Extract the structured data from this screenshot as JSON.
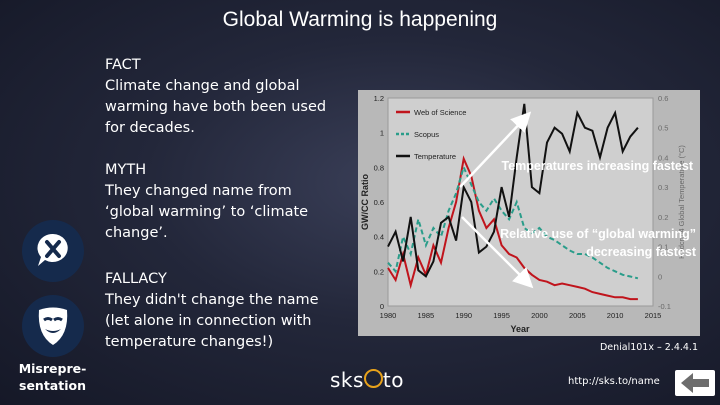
{
  "slide": {
    "title": "Global Warming is happening"
  },
  "fact": {
    "heading": "FACT",
    "text": "Climate change and global warming have both been used for decades."
  },
  "myth": {
    "heading": "MYTH",
    "text": "They changed name from ‘global warming’ to ‘climate change’."
  },
  "fallacy": {
    "heading": "FALLACY",
    "text": "They didn't change the name (let alone in connection with temperature changes!)"
  },
  "category": {
    "line1": "Misrepre-",
    "line2": "sentation"
  },
  "icons": {
    "myth": "speech-bubble-x-icon",
    "fallacy": "theater-mask-icon",
    "nav": "back-arrow-icon"
  },
  "annotations": {
    "temperature": "Temperatures increasing fastest",
    "gw_line1": "Relative use of “global warming”",
    "gw_line2": "decreasing fastest"
  },
  "footer": {
    "logo_left": "sks",
    "logo_right": "to",
    "code": "Denial101x – 2.4.4.1",
    "url": "http://sks.to/name"
  },
  "colors": {
    "web_of_science": "#c0141c",
    "scopus": "#2a9d8a",
    "temperature": "#111111",
    "icon_bg": "#152a4c",
    "logo_ring": "#e8a21b"
  },
  "chart_data": {
    "type": "line",
    "xlabel": "Year",
    "ylabel": "GW/CC Ratio",
    "y2label": "Hadcrut4 Global Temperature (°C)",
    "xlim": [
      1980,
      2015
    ],
    "ylim": [
      0,
      1.2
    ],
    "y2lim": [
      -0.1,
      0.6
    ],
    "xticks": [
      "1980",
      "1985",
      "1990",
      "1995",
      "2000",
      "2005",
      "2010",
      "2015"
    ],
    "yticks": [
      "0",
      "0.2",
      "0.4",
      "0.6",
      "0.8",
      "1",
      "1.2"
    ],
    "y2ticks": [
      "-0.1",
      "0",
      "0.1",
      "0.2",
      "0.3",
      "0.4",
      "0.5",
      "0.6"
    ],
    "x": [
      1980,
      1981,
      1982,
      1983,
      1984,
      1985,
      1986,
      1987,
      1988,
      1989,
      1990,
      1991,
      1992,
      1993,
      1994,
      1995,
      1996,
      1997,
      1998,
      1999,
      2000,
      2001,
      2002,
      2003,
      2004,
      2005,
      2006,
      2007,
      2008,
      2009,
      2010,
      2011,
      2012,
      2013
    ],
    "series": [
      {
        "name": "Web of Science",
        "axis": "left",
        "color": "#c0141c",
        "values": [
          0.22,
          0.15,
          0.3,
          0.12,
          0.28,
          0.18,
          0.35,
          0.25,
          0.45,
          0.6,
          0.85,
          0.75,
          0.55,
          0.45,
          0.5,
          0.35,
          0.3,
          0.28,
          0.22,
          0.18,
          0.15,
          0.14,
          0.12,
          0.13,
          0.12,
          0.11,
          0.1,
          0.08,
          0.07,
          0.06,
          0.05,
          0.05,
          0.04,
          0.04
        ]
      },
      {
        "name": "Scopus",
        "axis": "left",
        "color": "#2a9d8a",
        "values": [
          0.25,
          0.2,
          0.4,
          0.3,
          0.5,
          0.35,
          0.45,
          0.4,
          0.55,
          0.65,
          0.8,
          0.7,
          0.6,
          0.55,
          0.62,
          0.55,
          0.5,
          0.6,
          0.45,
          0.42,
          0.45,
          0.4,
          0.38,
          0.35,
          0.32,
          0.3,
          0.3,
          0.28,
          0.25,
          0.22,
          0.2,
          0.18,
          0.17,
          0.16
        ]
      },
      {
        "name": "Temperature",
        "axis": "right",
        "color": "#111111",
        "values": [
          0.1,
          0.15,
          0.05,
          0.2,
          0.02,
          0.0,
          0.05,
          0.18,
          0.2,
          0.12,
          0.3,
          0.25,
          0.08,
          0.1,
          0.15,
          0.3,
          0.2,
          0.4,
          0.58,
          0.3,
          0.28,
          0.45,
          0.5,
          0.48,
          0.42,
          0.55,
          0.5,
          0.49,
          0.4,
          0.5,
          0.55,
          0.42,
          0.47,
          0.5
        ]
      }
    ]
  }
}
